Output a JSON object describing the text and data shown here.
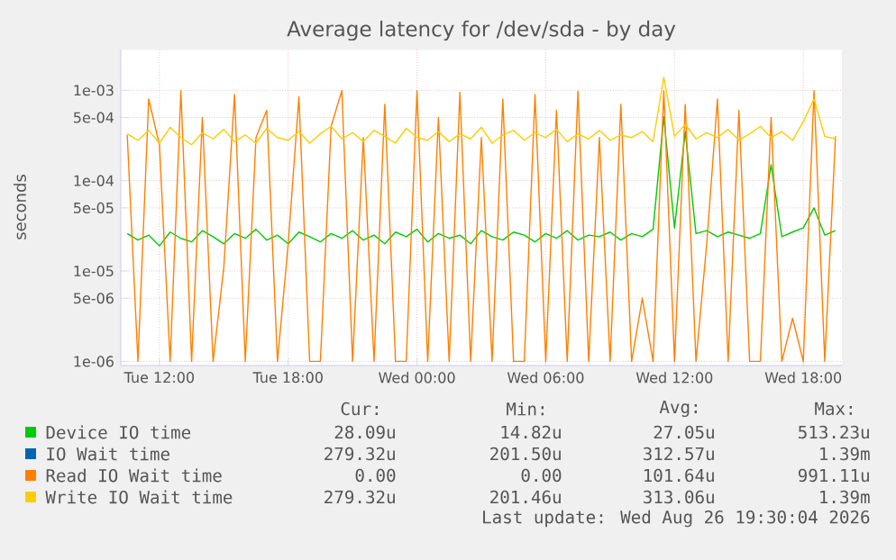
{
  "chart_data": {
    "type": "line",
    "title": "Average latency for /dev/sda - by day",
    "ylabel": "seconds",
    "log": "y",
    "grid": true,
    "legend": "bottom",
    "marker": "none",
    "line_style": "solid",
    "xlim": [
      "2026-08-25T10:12",
      "2026-08-26T19:48"
    ],
    "ylim": [
      9e-07,
      0.0028
    ],
    "xticks": [
      {
        "value": "2026-08-25T12:00",
        "label": "Tue 12:00"
      },
      {
        "value": "2026-08-25T18:00",
        "label": "Tue 18:00"
      },
      {
        "value": "2026-08-26T00:00",
        "label": "Wed 00:00"
      },
      {
        "value": "2026-08-26T06:00",
        "label": "Wed 06:00"
      },
      {
        "value": "2026-08-26T12:00",
        "label": "Wed 12:00"
      },
      {
        "value": "2026-08-26T18:00",
        "label": "Wed 18:00"
      }
    ],
    "yticks": [
      {
        "value": 1e-06,
        "label": "1e-06"
      },
      {
        "value": 5e-06,
        "label": "5e-06"
      },
      {
        "value": 1e-05,
        "label": "1e-05"
      },
      {
        "value": 5e-05,
        "label": "5e-05"
      },
      {
        "value": 0.0001,
        "label": "1e-04"
      },
      {
        "value": 0.0005,
        "label": "5e-04"
      },
      {
        "value": 0.001,
        "label": "1e-03"
      }
    ],
    "x": [
      "2026-08-25T10:30",
      "2026-08-25T11:00",
      "2026-08-25T11:30",
      "2026-08-25T12:00",
      "2026-08-25T12:30",
      "2026-08-25T13:00",
      "2026-08-25T13:30",
      "2026-08-25T14:00",
      "2026-08-25T14:30",
      "2026-08-25T15:00",
      "2026-08-25T15:30",
      "2026-08-25T16:00",
      "2026-08-25T16:30",
      "2026-08-25T17:00",
      "2026-08-25T17:30",
      "2026-08-25T18:00",
      "2026-08-25T18:30",
      "2026-08-25T19:00",
      "2026-08-25T19:30",
      "2026-08-25T20:00",
      "2026-08-25T20:30",
      "2026-08-25T21:00",
      "2026-08-25T21:30",
      "2026-08-25T22:00",
      "2026-08-25T22:30",
      "2026-08-25T23:00",
      "2026-08-25T23:30",
      "2026-08-26T00:00",
      "2026-08-26T00:30",
      "2026-08-26T01:00",
      "2026-08-26T01:30",
      "2026-08-26T02:00",
      "2026-08-26T02:30",
      "2026-08-26T03:00",
      "2026-08-26T03:30",
      "2026-08-26T04:00",
      "2026-08-26T04:30",
      "2026-08-26T05:00",
      "2026-08-26T05:30",
      "2026-08-26T06:00",
      "2026-08-26T06:30",
      "2026-08-26T07:00",
      "2026-08-26T07:30",
      "2026-08-26T08:00",
      "2026-08-26T08:30",
      "2026-08-26T09:00",
      "2026-08-26T09:30",
      "2026-08-26T10:00",
      "2026-08-26T10:30",
      "2026-08-26T11:00",
      "2026-08-26T11:30",
      "2026-08-26T12:00",
      "2026-08-26T12:30",
      "2026-08-26T13:00",
      "2026-08-26T13:30",
      "2026-08-26T14:00",
      "2026-08-26T14:30",
      "2026-08-26T15:00",
      "2026-08-26T15:30",
      "2026-08-26T16:00",
      "2026-08-26T16:30",
      "2026-08-26T17:00",
      "2026-08-26T17:30",
      "2026-08-26T18:00",
      "2026-08-26T18:30",
      "2026-08-26T19:00",
      "2026-08-26T19:30"
    ],
    "series": [
      {
        "name": "Device IO time",
        "color": "#00cc00",
        "values": [
          2.6e-05,
          2.2e-05,
          2.5e-05,
          1.9e-05,
          2.7e-05,
          2.3e-05,
          2.1e-05,
          2.8e-05,
          2.4e-05,
          2e-05,
          2.6e-05,
          2.3e-05,
          2.9e-05,
          2.2e-05,
          2.5e-05,
          2e-05,
          2.7e-05,
          2.4e-05,
          2.1e-05,
          2.6e-05,
          2.3e-05,
          2.8e-05,
          2.2e-05,
          2.5e-05,
          2e-05,
          2.7e-05,
          2.4e-05,
          2.9e-05,
          2.1e-05,
          2.6e-05,
          2.3e-05,
          2.5e-05,
          2e-05,
          2.8e-05,
          2.4e-05,
          2.2e-05,
          2.7e-05,
          2.5e-05,
          2.1e-05,
          2.6e-05,
          2.3e-05,
          2.8e-05,
          2.2e-05,
          2.5e-05,
          2.4e-05,
          2.7e-05,
          2.2e-05,
          2.6e-05,
          2.4e-05,
          2.9e-05,
          0.00051,
          3e-05,
          0.00035,
          2.6e-05,
          2.8e-05,
          2.4e-05,
          2.7e-05,
          2.5e-05,
          2.3e-05,
          2.6e-05,
          0.00015,
          2.4e-05,
          2.7e-05,
          3e-05,
          5e-05,
          2.5e-05,
          2.8e-05
        ]
      },
      {
        "name": "IO Wait time",
        "color": "#0066b3",
        "values": [
          null,
          null,
          null,
          null,
          null,
          null,
          null,
          null,
          null,
          null,
          null,
          null,
          null,
          null,
          null,
          null,
          null,
          null,
          null,
          null,
          null,
          null,
          null,
          null,
          null,
          null,
          null,
          null,
          null,
          null,
          null,
          null,
          null,
          null,
          null,
          null,
          null,
          null,
          null,
          null,
          null,
          null,
          null,
          null,
          null,
          null,
          null,
          null,
          null,
          null,
          null,
          null,
          null,
          null,
          null,
          null,
          null,
          null,
          null,
          null,
          null,
          null,
          null,
          null,
          null,
          null,
          null
        ]
      },
      {
        "name": "Read IO Wait time",
        "color": "#ff8000",
        "values": [
          0.00032,
          1e-06,
          0.0008,
          0.00025,
          1e-06,
          0.00099,
          1e-06,
          0.0005,
          1e-06,
          1.1e-05,
          0.0009,
          1e-06,
          0.0003,
          0.0006,
          1e-06,
          2e-05,
          0.00085,
          1e-06,
          1e-06,
          0.0004,
          0.00099,
          1e-06,
          0.0003,
          1e-06,
          0.0007,
          1e-06,
          1e-06,
          0.00099,
          1e-06,
          0.0005,
          1e-06,
          0.00095,
          1e-06,
          0.0003,
          1e-06,
          0.0008,
          1e-06,
          1e-06,
          0.0009,
          1e-06,
          0.0006,
          1e-06,
          0.00098,
          1e-06,
          0.0003,
          1e-06,
          0.0007,
          1e-06,
          5e-06,
          1e-06,
          0.00099,
          1e-06,
          0.0007,
          1e-06,
          2e-05,
          0.0008,
          1e-06,
          0.0006,
          1e-06,
          1e-06,
          0.0005,
          1e-06,
          3e-06,
          1e-06,
          0.00099,
          1e-06,
          0.00031
        ]
      },
      {
        "name": "Write IO Wait time",
        "color": "#ffcc00",
        "values": [
          0.00033,
          0.00028,
          0.00036,
          0.00026,
          0.00039,
          0.0003,
          0.00025,
          0.00034,
          0.00029,
          0.00037,
          0.00027,
          0.00032,
          0.00026,
          0.00038,
          0.0003,
          0.00028,
          0.00035,
          0.00026,
          0.00033,
          0.0004,
          0.00029,
          0.00034,
          0.00027,
          0.00036,
          0.00031,
          0.00026,
          0.00038,
          0.0003,
          0.00028,
          0.00035,
          0.00027,
          0.00033,
          0.00029,
          0.00039,
          0.00026,
          0.00032,
          0.00036,
          0.00028,
          0.00034,
          0.0003,
          0.00037,
          0.00027,
          0.00033,
          0.00029,
          0.00036,
          0.00028,
          0.00032,
          0.0003,
          0.00035,
          0.00027,
          0.00139,
          0.00031,
          0.00042,
          0.00029,
          0.00034,
          0.0003,
          0.00037,
          0.00028,
          0.00033,
          0.0004,
          0.0003,
          0.00035,
          0.00028,
          0.00045,
          0.0008,
          0.00031,
          0.00029
        ]
      }
    ],
    "annotations": [
      "Cur:",
      "Min:",
      "Avg:",
      "Max:",
      "28.09u",
      "14.82u",
      "27.05u",
      "513.23u",
      "279.32u",
      "201.50u",
      "312.57u",
      "1.39m",
      "0.00",
      "0.00",
      "101.64u",
      "991.11u",
      "279.32u",
      "201.46u",
      "313.06u",
      "1.39m",
      "Last update: Wed Aug 26 19:30:04 2026"
    ]
  }
}
